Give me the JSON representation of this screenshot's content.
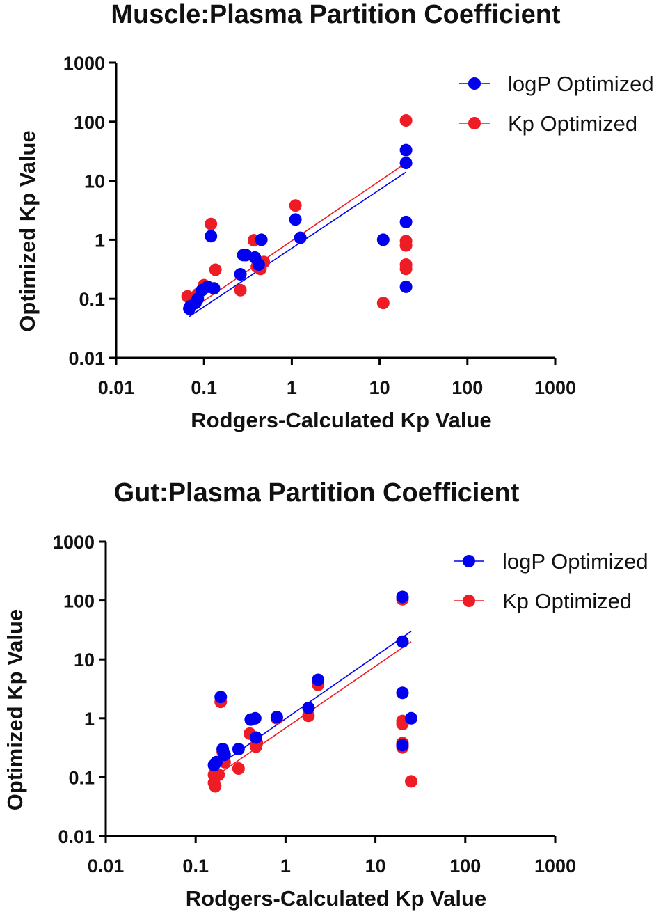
{
  "chart_data": [
    {
      "type": "scatter",
      "title": "Muscle:Plasma Partition Coefficient",
      "xlabel": "Rodgers-Calculated Kp Value",
      "ylabel": "Optimized Kp Value",
      "xscale": "log",
      "yscale": "log",
      "xlim": [
        0.01,
        1000
      ],
      "ylim": [
        0.01,
        1000
      ],
      "x_ticks": [
        "0.01",
        "0.1",
        "1",
        "10",
        "100",
        "1000"
      ],
      "y_ticks": [
        "0.01",
        "0.1",
        "1",
        "10",
        "100",
        "1000"
      ],
      "grid": false,
      "legend_position": "top-right",
      "series": [
        {
          "name": "logP Optimized",
          "color": "#0000ee",
          "points": [
            [
              0.068,
              0.068
            ],
            [
              0.07,
              0.075
            ],
            [
              0.08,
              0.085
            ],
            [
              0.085,
              0.1
            ],
            [
              0.095,
              0.14
            ],
            [
              0.11,
              0.16
            ],
            [
              0.12,
              1.15
            ],
            [
              0.13,
              0.15
            ],
            [
              0.26,
              0.26
            ],
            [
              0.28,
              0.55
            ],
            [
              0.3,
              0.55
            ],
            [
              0.38,
              0.5
            ],
            [
              0.42,
              0.38
            ],
            [
              0.45,
              1.0
            ],
            [
              1.1,
              2.2
            ],
            [
              1.25,
              1.08
            ],
            [
              11.0,
              1.0
            ],
            [
              20.0,
              33.0
            ],
            [
              20.0,
              20.0
            ],
            [
              20.0,
              2.0
            ],
            [
              20.0,
              0.16
            ]
          ],
          "fit_line": [
            [
              0.068,
              0.05
            ],
            [
              20.0,
              14.0
            ]
          ]
        },
        {
          "name": "Kp Optimized",
          "color": "#ee1c25",
          "points": [
            [
              0.065,
              0.11
            ],
            [
              0.072,
              0.1
            ],
            [
              0.085,
              0.12
            ],
            [
              0.1,
              0.17
            ],
            [
              0.12,
              1.85
            ],
            [
              0.135,
              0.31
            ],
            [
              0.26,
              0.14
            ],
            [
              0.3,
              0.55
            ],
            [
              0.37,
              0.98
            ],
            [
              0.4,
              0.35
            ],
            [
              0.44,
              0.32
            ],
            [
              0.48,
              0.42
            ],
            [
              1.1,
              3.8
            ],
            [
              11.0,
              0.085
            ],
            [
              20.0,
              105.0
            ],
            [
              20.0,
              0.95
            ],
            [
              20.0,
              0.8
            ],
            [
              20.0,
              0.38
            ],
            [
              20.0,
              0.32
            ]
          ],
          "fit_line": [
            [
              0.065,
              0.06
            ],
            [
              20.0,
              20.0
            ]
          ]
        }
      ]
    },
    {
      "type": "scatter",
      "title": "Gut:Plasma Partition Coefficient",
      "xlabel": "Rodgers-Calculated Kp Value",
      "ylabel": "Optimized Kp Value",
      "xscale": "log",
      "yscale": "log",
      "xlim": [
        0.01,
        1000
      ],
      "ylim": [
        0.01,
        1000
      ],
      "x_ticks": [
        "0.01",
        "0.1",
        "1",
        "10",
        "100",
        "1000"
      ],
      "y_ticks": [
        "0.01",
        "0.1",
        "1",
        "10",
        "100",
        "1000"
      ],
      "grid": false,
      "legend_position": "top-right",
      "series": [
        {
          "name": "logP Optimized",
          "color": "#0000ee",
          "points": [
            [
              0.16,
              0.16
            ],
            [
              0.17,
              0.18
            ],
            [
              0.19,
              2.3
            ],
            [
              0.2,
              0.3
            ],
            [
              0.21,
              0.24
            ],
            [
              0.3,
              0.3
            ],
            [
              0.41,
              0.95
            ],
            [
              0.46,
              1.0
            ],
            [
              0.47,
              0.47
            ],
            [
              0.8,
              1.05
            ],
            [
              1.8,
              1.5
            ],
            [
              2.3,
              4.5
            ],
            [
              20.0,
              115.0
            ],
            [
              20.0,
              20.0
            ],
            [
              20.0,
              2.7
            ],
            [
              20.0,
              0.35
            ],
            [
              25.0,
              1.0
            ]
          ],
          "fit_line": [
            [
              0.16,
              0.14
            ],
            [
              25.0,
              30.0
            ]
          ]
        },
        {
          "name": "Kp Optimized",
          "color": "#ee1c25",
          "points": [
            [
              0.16,
              0.11
            ],
            [
              0.16,
              0.08
            ],
            [
              0.165,
              0.07
            ],
            [
              0.18,
              0.11
            ],
            [
              0.19,
              1.9
            ],
            [
              0.2,
              0.27
            ],
            [
              0.21,
              0.18
            ],
            [
              0.3,
              0.14
            ],
            [
              0.4,
              0.55
            ],
            [
              0.47,
              0.33
            ],
            [
              0.48,
              0.38
            ],
            [
              0.8,
              1.0
            ],
            [
              1.8,
              1.1
            ],
            [
              2.3,
              3.7
            ],
            [
              20.0,
              105.0
            ],
            [
              20.0,
              0.9
            ],
            [
              20.0,
              0.8
            ],
            [
              20.0,
              0.38
            ],
            [
              20.0,
              0.32
            ],
            [
              25.0,
              0.085
            ]
          ],
          "fit_line": [
            [
              0.16,
              0.1
            ],
            [
              25.0,
              20.0
            ]
          ]
        }
      ]
    }
  ]
}
